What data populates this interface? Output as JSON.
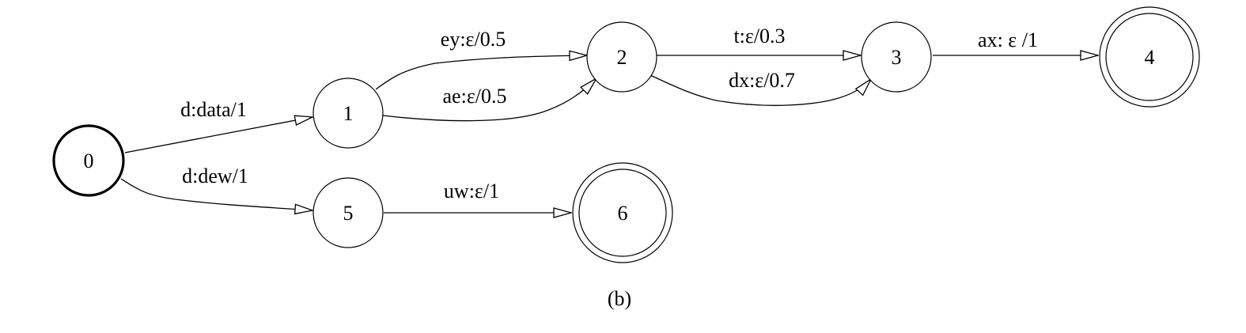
{
  "caption": "(b)",
  "states": [
    {
      "id": "0",
      "label": "0",
      "start": true,
      "final": false
    },
    {
      "id": "1",
      "label": "1",
      "start": false,
      "final": false
    },
    {
      "id": "2",
      "label": "2",
      "start": false,
      "final": false
    },
    {
      "id": "3",
      "label": "3",
      "start": false,
      "final": false
    },
    {
      "id": "4",
      "label": "4",
      "start": false,
      "final": true
    },
    {
      "id": "5",
      "label": "5",
      "start": false,
      "final": false
    },
    {
      "id": "6",
      "label": "6",
      "start": false,
      "final": true
    }
  ],
  "transitions": [
    {
      "from": "0",
      "to": "1",
      "label": "d:data/1"
    },
    {
      "from": "0",
      "to": "5",
      "label": "d:dew/1"
    },
    {
      "from": "1",
      "to": "2",
      "label": "ey:ε/0.5"
    },
    {
      "from": "1",
      "to": "2",
      "label": "ae:ε/0.5"
    },
    {
      "from": "2",
      "to": "3",
      "label": "t:ε/0.3"
    },
    {
      "from": "2",
      "to": "3",
      "label": "dx:ε/0.7"
    },
    {
      "from": "3",
      "to": "4",
      "label": "ax: ε /1"
    },
    {
      "from": "5",
      "to": "6",
      "label": "uw:ε/1"
    }
  ]
}
